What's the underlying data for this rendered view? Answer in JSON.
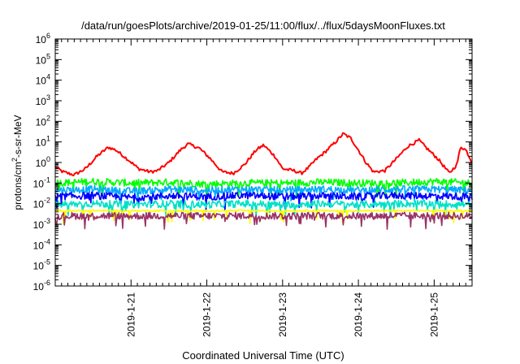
{
  "chart_data": {
    "type": "line",
    "title": "/data/run/goesPlots/archive/2019-01-25/11:00/flux/../flux/5daysMoonFluxes.txt",
    "xlabel": "Coordinated Universal Time (UTC)",
    "ylabel": {
      "pre": "protons/cm",
      "sup": "2",
      "post": "-s-sr-MeV"
    },
    "x_range_days": [
      20.0,
      25.5
    ],
    "y_scale": "log",
    "ylim": [
      1e-06,
      1000000.0
    ],
    "y_ticks": [
      {
        "exp": "-6",
        "value": 1e-06
      },
      {
        "exp": "-5",
        "value": 1e-05
      },
      {
        "exp": "-4",
        "value": 0.0001
      },
      {
        "exp": "-3",
        "value": 0.001
      },
      {
        "exp": "-2",
        "value": 0.01
      },
      {
        "exp": "-1",
        "value": 0.1
      },
      {
        "exp": "0",
        "value": 1
      },
      {
        "exp": "1",
        "value": 10
      },
      {
        "exp": "2",
        "value": 100
      },
      {
        "exp": "3",
        "value": 1000
      },
      {
        "exp": "4",
        "value": 10000
      },
      {
        "exp": "5",
        "value": 100000
      },
      {
        "exp": "6",
        "value": 1000000
      }
    ],
    "y_tick_base": "10",
    "x_ticks": [
      {
        "label": "2019-1-21",
        "day": 21
      },
      {
        "label": "2019-1-22",
        "day": 22
      },
      {
        "label": "2019-1-23",
        "day": 23
      },
      {
        "label": "2019-1-24",
        "day": 24
      },
      {
        "label": "2019-1-25",
        "day": 25
      }
    ],
    "grid": false,
    "legend": "none",
    "series": [
      {
        "color": "#ff0000",
        "points": [
          [
            20.0,
            0.6
          ],
          [
            20.1,
            0.35
          ],
          [
            20.25,
            0.25
          ],
          [
            20.4,
            0.5
          ],
          [
            20.55,
            2.0
          ],
          [
            20.7,
            5.5
          ],
          [
            20.8,
            4.0
          ],
          [
            20.95,
            1.5
          ],
          [
            21.1,
            0.5
          ],
          [
            21.25,
            0.35
          ],
          [
            21.35,
            0.4
          ],
          [
            21.5,
            1.0
          ],
          [
            21.65,
            4.0
          ],
          [
            21.75,
            8.0
          ],
          [
            21.9,
            5.0
          ],
          [
            22.05,
            1.5
          ],
          [
            22.2,
            0.35
          ],
          [
            22.35,
            0.3
          ],
          [
            22.5,
            0.8
          ],
          [
            22.65,
            4.0
          ],
          [
            22.75,
            7.0
          ],
          [
            22.9,
            2.0
          ],
          [
            23.0,
            0.5
          ],
          [
            23.15,
            0.4
          ],
          [
            23.25,
            0.3
          ],
          [
            23.35,
            0.6
          ],
          [
            23.45,
            1.5
          ],
          [
            23.55,
            3.0
          ],
          [
            23.7,
            10.0
          ],
          [
            23.8,
            25.0
          ],
          [
            23.9,
            15.0
          ],
          [
            24.0,
            4.0
          ],
          [
            24.1,
            1.0
          ],
          [
            24.2,
            0.35
          ],
          [
            24.35,
            0.4
          ],
          [
            24.5,
            1.5
          ],
          [
            24.65,
            6.0
          ],
          [
            24.8,
            12.0
          ],
          [
            24.9,
            5.0
          ],
          [
            25.05,
            1.5
          ],
          [
            25.2,
            0.3
          ],
          [
            25.3,
            0.8
          ],
          [
            25.35,
            6.0
          ],
          [
            25.42,
            4.0
          ],
          [
            25.5,
            1.0
          ]
        ]
      },
      {
        "color": "#00ff00",
        "points": [
          [
            20.0,
            0.1
          ],
          [
            20.5,
            0.12
          ],
          [
            21.0,
            0.1
          ],
          [
            21.5,
            0.11
          ],
          [
            22.0,
            0.09
          ],
          [
            22.5,
            0.1
          ],
          [
            23.0,
            0.1
          ],
          [
            23.5,
            0.11
          ],
          [
            24.0,
            0.1
          ],
          [
            24.5,
            0.1
          ],
          [
            25.0,
            0.12
          ],
          [
            25.5,
            0.1
          ]
        ]
      },
      {
        "color": "#00aaff",
        "points": [
          [
            20.0,
            0.045
          ],
          [
            20.5,
            0.05
          ],
          [
            21.0,
            0.04
          ],
          [
            21.5,
            0.05
          ],
          [
            22.0,
            0.045
          ],
          [
            22.5,
            0.05
          ],
          [
            23.0,
            0.045
          ],
          [
            23.5,
            0.05
          ],
          [
            24.0,
            0.045
          ],
          [
            24.5,
            0.05
          ],
          [
            25.0,
            0.05
          ],
          [
            25.5,
            0.045
          ]
        ]
      },
      {
        "color": "#0000ff",
        "points": [
          [
            20.0,
            0.022
          ],
          [
            20.5,
            0.025
          ],
          [
            21.0,
            0.02
          ],
          [
            21.5,
            0.024
          ],
          [
            22.0,
            0.022
          ],
          [
            22.5,
            0.025
          ],
          [
            23.0,
            0.022
          ],
          [
            23.5,
            0.024
          ],
          [
            24.0,
            0.022
          ],
          [
            24.5,
            0.025
          ],
          [
            25.0,
            0.024
          ],
          [
            25.5,
            0.022
          ]
        ]
      },
      {
        "color": "#00e0c8",
        "points": [
          [
            20.0,
            0.009
          ],
          [
            20.5,
            0.01
          ],
          [
            21.0,
            0.009
          ],
          [
            21.5,
            0.01
          ],
          [
            22.0,
            0.009
          ],
          [
            22.5,
            0.01
          ],
          [
            23.0,
            0.009
          ],
          [
            23.5,
            0.01
          ],
          [
            24.0,
            0.009
          ],
          [
            24.5,
            0.01
          ],
          [
            25.0,
            0.01
          ],
          [
            25.5,
            0.009
          ]
        ]
      },
      {
        "color": "#ffff00",
        "points": [
          [
            20.0,
            0.0045
          ],
          [
            20.5,
            0.0046
          ],
          [
            21.0,
            0.0045
          ],
          [
            21.5,
            0.0046
          ],
          [
            22.0,
            0.0045
          ],
          [
            22.5,
            0.0046
          ],
          [
            23.0,
            0.0045
          ],
          [
            23.5,
            0.0046
          ],
          [
            24.0,
            0.0045
          ],
          [
            24.5,
            0.0046
          ],
          [
            25.0,
            0.0046
          ],
          [
            25.5,
            0.0045
          ]
        ]
      },
      {
        "color": "#993366",
        "points": [
          [
            20.0,
            0.0025
          ],
          [
            20.5,
            0.0026
          ],
          [
            21.0,
            0.0025
          ],
          [
            21.5,
            0.0026
          ],
          [
            22.0,
            0.0025
          ],
          [
            22.5,
            0.0026
          ],
          [
            23.0,
            0.0025
          ],
          [
            23.5,
            0.0026
          ],
          [
            24.0,
            0.0025
          ],
          [
            24.5,
            0.0026
          ],
          [
            25.0,
            0.0026
          ],
          [
            25.5,
            0.0025
          ]
        ]
      }
    ]
  }
}
